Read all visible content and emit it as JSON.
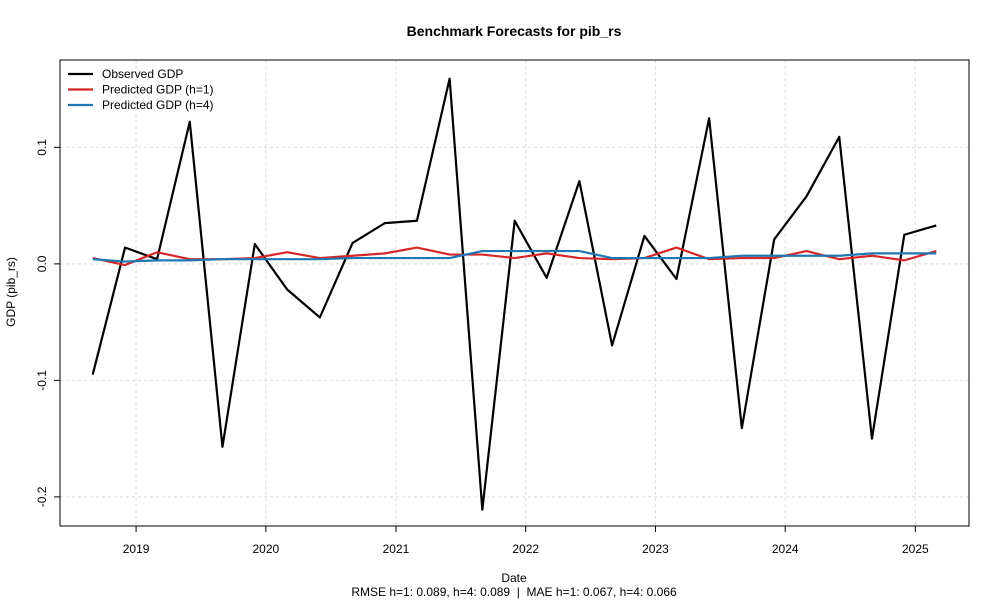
{
  "chart_data": {
    "type": "line",
    "title": "Benchmark Forecasts for pib_rs",
    "xlabel": "Date",
    "ylabel": "GDP (pib_rs)",
    "subtitle": "RMSE h=1: 0.089, h=4: 0.089  |  MAE h=1: 0.067, h=4: 0.066",
    "xlim": [
      "2018-06-01",
      "2025-06-01"
    ],
    "ylim": [
      -0.225,
      0.175
    ],
    "x_ticks": [
      "2019-01-01",
      "2020-01-01",
      "2021-01-01",
      "2022-01-01",
      "2023-01-01",
      "2024-01-01",
      "2025-01-01"
    ],
    "x_tick_labels": [
      "2019",
      "2020",
      "2021",
      "2022",
      "2023",
      "2024",
      "2025"
    ],
    "y_ticks": [
      -0.2,
      -0.1,
      0.0,
      0.1
    ],
    "y_tick_labels": [
      "-0.2",
      "-0.1",
      "0.0",
      "0.1"
    ],
    "grid": true,
    "legend_position": "top-left",
    "x": [
      "2018-09-01",
      "2018-12-01",
      "2019-03-01",
      "2019-06-01",
      "2019-09-01",
      "2019-12-01",
      "2020-03-01",
      "2020-06-01",
      "2020-09-01",
      "2020-12-01",
      "2021-03-01",
      "2021-06-01",
      "2021-09-01",
      "2021-12-01",
      "2022-03-01",
      "2022-06-01",
      "2022-09-01",
      "2022-12-01",
      "2023-03-01",
      "2023-06-01",
      "2023-09-01",
      "2023-12-01",
      "2024-03-01",
      "2024-06-01",
      "2024-09-01",
      "2024-12-01",
      "2025-03-01"
    ],
    "series": [
      {
        "name": "Observed GDP",
        "color": "#000000",
        "values": [
          -0.095,
          0.014,
          0.004,
          0.122,
          -0.157,
          0.017,
          -0.022,
          -0.046,
          0.018,
          0.035,
          0.037,
          0.159,
          -0.211,
          0.037,
          -0.012,
          0.071,
          -0.07,
          0.024,
          -0.013,
          0.125,
          -0.141,
          0.021,
          0.058,
          0.109,
          -0.15,
          0.025,
          0.033
        ]
      },
      {
        "name": "Predicted GDP (h=1)",
        "color": "#d62728",
        "values": [
          0.005,
          -0.001,
          0.01,
          0.004,
          0.004,
          0.005,
          0.01,
          0.005,
          0.007,
          0.009,
          0.014,
          0.008,
          0.008,
          0.005,
          0.009,
          0.005,
          0.004,
          0.005,
          0.014,
          0.004,
          0.005,
          0.005,
          0.011,
          0.004,
          0.007,
          0.003,
          0.011
        ]
      },
      {
        "name": "Predicted GDP (h=4)",
        "color": "#1f77b4",
        "values": [
          0.004,
          0.002,
          0.003,
          0.003,
          0.004,
          0.004,
          0.004,
          0.004,
          0.005,
          0.005,
          0.005,
          0.005,
          0.011,
          0.011,
          0.011,
          0.011,
          0.005,
          0.005,
          0.005,
          0.005,
          0.007,
          0.007,
          0.007,
          0.007,
          0.009,
          0.009,
          0.009
        ]
      }
    ]
  }
}
